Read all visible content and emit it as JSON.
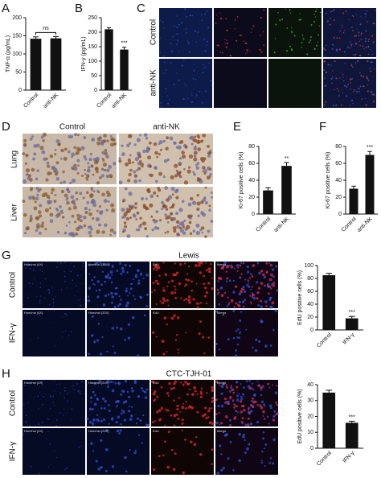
{
  "figure": {
    "panel_labels": [
      "A",
      "B",
      "C",
      "D",
      "E",
      "F",
      "G",
      "H"
    ],
    "c": {
      "rows": [
        "Control",
        "anti-NK"
      ]
    },
    "d": {
      "columns": [
        "Control",
        "anti-NK"
      ],
      "rows": [
        "Lung",
        "Liver"
      ]
    },
    "g": {
      "title": "Lewis",
      "rows": [
        "Control",
        "IFN-γ"
      ],
      "image_labels": [
        "Hoechst (4X)",
        "Hoechst (20X)",
        "EdU",
        "Merge"
      ]
    },
    "h": {
      "title": "CTC-TJH-01",
      "rows": [
        "Control",
        "IFN-γ"
      ],
      "image_labels": [
        "Hoechst (4X)",
        "Hoechst (20X)",
        "EdU",
        "Merge"
      ]
    }
  },
  "chart_data": [
    {
      "type": "bar",
      "y_label": "TNF-α (pg/mL)",
      "categories": [
        "Control",
        "anti-NK"
      ],
      "values": [
        142,
        143
      ],
      "errors": [
        5,
        5
      ],
      "annotation": "ns",
      "annotation_bracket": true,
      "color": "#111111",
      "ylim": [
        0,
        200
      ],
      "yticks": [
        0,
        50,
        100,
        150,
        200
      ]
    },
    {
      "type": "bar",
      "y_label": "IFN-γ (pg/mL)",
      "categories": [
        "Control",
        "anti-NK"
      ],
      "values": [
        210,
        140
      ],
      "errors": [
        5,
        8
      ],
      "annotation": "***",
      "annotation_bracket": false,
      "color": "#111111",
      "ylim": [
        0,
        250
      ],
      "yticks": [
        0,
        50,
        100,
        150,
        200,
        250
      ]
    },
    {
      "type": "bar",
      "y_label": "Ki-67 positive cells (%)",
      "categories": [
        "Control",
        "anti-NK"
      ],
      "values": [
        28,
        57
      ],
      "errors": [
        3,
        4
      ],
      "annotation": "**",
      "annotation_bracket": false,
      "color": "#111111",
      "ylim": [
        0,
        80
      ],
      "yticks": [
        0,
        20,
        40,
        60,
        80
      ]
    },
    {
      "type": "bar",
      "y_label": "Ki-67 positive cells (%)",
      "categories": [
        "Control",
        "anti-NK"
      ],
      "values": [
        30,
        70
      ],
      "errors": [
        3,
        4
      ],
      "annotation": "***",
      "annotation_bracket": false,
      "color": "#111111",
      "ylim": [
        0,
        80
      ],
      "yticks": [
        0,
        20,
        40,
        60,
        80
      ]
    },
    {
      "type": "bar",
      "y_label": "EdU positive cells (%)",
      "categories": [
        "Control",
        "IFN-γ"
      ],
      "values": [
        85,
        18
      ],
      "errors": [
        3,
        3
      ],
      "annotation": "***",
      "annotation_bracket": false,
      "color": "#111111",
      "ylim": [
        0,
        100
      ],
      "yticks": [
        0,
        20,
        40,
        60,
        80,
        100
      ]
    },
    {
      "type": "bar",
      "y_label": "EdU positive cells (%)",
      "categories": [
        "Control",
        "IFN-γ"
      ],
      "values": [
        35,
        16
      ],
      "errors": [
        1.5,
        1
      ],
      "annotation": "***",
      "annotation_bracket": false,
      "color": "#111111",
      "ylim": [
        0,
        40
      ],
      "yticks": [
        0,
        10,
        20,
        30,
        40
      ]
    }
  ]
}
